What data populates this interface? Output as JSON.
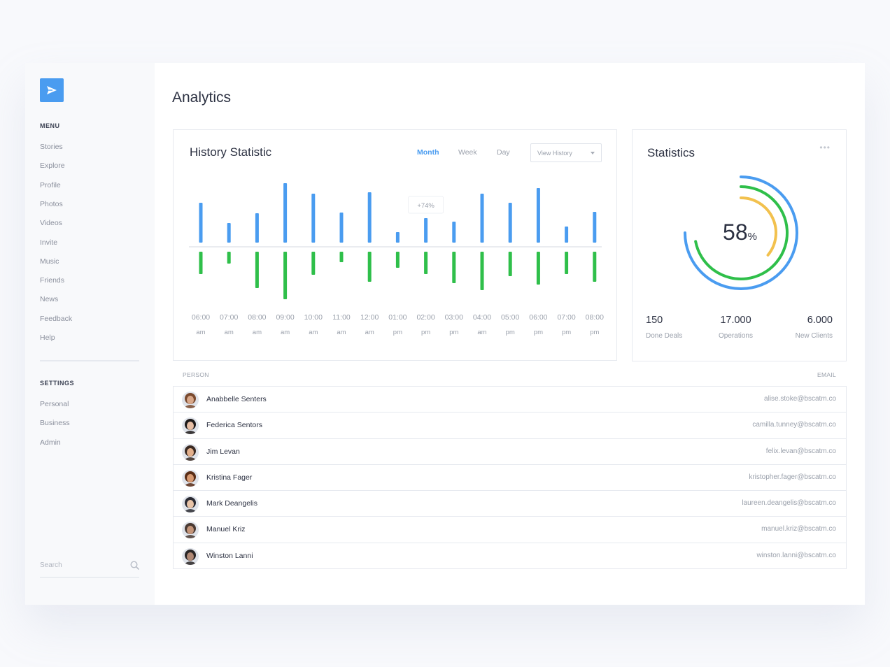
{
  "sidebar": {
    "logo_icon": "paper-plane-icon",
    "menu_heading": "MENU",
    "menu_items": [
      "Stories",
      "Explore",
      "Profile",
      "Photos",
      "Videos",
      "Invite",
      "Music",
      "Friends",
      "News",
      "Feedback",
      "Help"
    ],
    "settings_heading": "SETTINGS",
    "settings_items": [
      "Personal",
      "Business",
      "Admin"
    ],
    "search_placeholder": "Search"
  },
  "page_title": "Analytics",
  "history": {
    "title": "History Statistic",
    "tabs": [
      "Month",
      "Week",
      "Day"
    ],
    "active_tab": "Month",
    "dropdown_label": "View History",
    "tooltip": "+74%",
    "colors": {
      "up": "#4a9cf0",
      "down": "#2fbf4a"
    },
    "chart_data": {
      "type": "bar",
      "categories": [
        [
          "06:00",
          "am"
        ],
        [
          "07:00",
          "am"
        ],
        [
          "08:00",
          "am"
        ],
        [
          "09:00",
          "am"
        ],
        [
          "10:00",
          "am"
        ],
        [
          "11:00",
          "am"
        ],
        [
          "12:00",
          "am"
        ],
        [
          "01:00",
          "pm"
        ],
        [
          "02:00",
          "pm"
        ],
        [
          "03:00",
          "pm"
        ],
        [
          "04:00",
          "am"
        ],
        [
          "05:00",
          "pm"
        ],
        [
          "06:00",
          "pm"
        ],
        [
          "07:00",
          "pm"
        ],
        [
          "08:00",
          "pm"
        ]
      ],
      "series": [
        {
          "values": [
            57,
            28,
            42,
            85,
            70,
            43,
            72,
            15,
            35,
            30,
            70,
            57,
            78,
            23,
            44
          ]
        },
        {
          "values": [
            -32,
            -17,
            -52,
            -68,
            -33,
            -15,
            -43,
            -23,
            -32,
            -45,
            -55,
            -35,
            -47,
            -32,
            -43
          ]
        }
      ],
      "highlight_index": 8
    }
  },
  "statistics": {
    "title": "Statistics",
    "more_icon": "more-dots-icon",
    "percent_value": "58",
    "percent_unit": "%",
    "rings": [
      {
        "color": "#4a9cf0",
        "value": 0.75
      },
      {
        "color": "#2fbf4a",
        "value": 0.72
      },
      {
        "color": "#f2c14e",
        "value": 0.36
      }
    ],
    "metrics": [
      {
        "value": "150",
        "label": "Done Deals"
      },
      {
        "value": "17.000",
        "label": "Operations"
      },
      {
        "value": "6.000",
        "label": "New Clients"
      }
    ]
  },
  "table": {
    "headers": {
      "person": "PERSON",
      "email": "EMAIL"
    },
    "rows": [
      {
        "name": "Anabbelle Senters",
        "email": "alise.stoke@bscatm.co",
        "skin": "#d9a88a",
        "hair": "#7a4a2e"
      },
      {
        "name": "Federica Sentors",
        "email": "camilla.tunney@bscatm.co",
        "skin": "#e8bfa5",
        "hair": "#1e1a1a"
      },
      {
        "name": "Jim Levan",
        "email": "felix.levan@bscatm.co",
        "skin": "#e3b08c",
        "hair": "#3a2a22"
      },
      {
        "name": "Kristina Fager",
        "email": "kristopher.fager@bscatm.co",
        "skin": "#d89a72",
        "hair": "#5a2d16"
      },
      {
        "name": "Mark Deangelis",
        "email": "laureen.deangelis@bscatm.co",
        "skin": "#e8c4a8",
        "hair": "#2b2b33"
      },
      {
        "name": "Manuel Kriz",
        "email": "manuel.kriz@bscatm.co",
        "skin": "#c4957a",
        "hair": "#4a3a33"
      },
      {
        "name": "Winston Lanni",
        "email": "winston.lanni@bscatm.co",
        "skin": "#b08874",
        "hair": "#2a2626"
      }
    ]
  }
}
